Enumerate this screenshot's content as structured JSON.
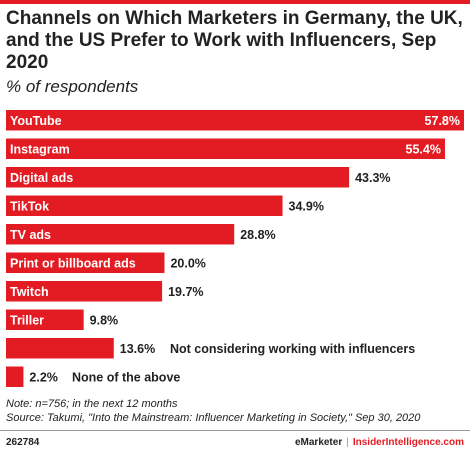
{
  "title": "Channels on Which Marketers in Germany, the UK, and the US Prefer to Work with Influencers, Sep 2020",
  "subtitle": "% of respondents",
  "chart_data": {
    "type": "bar",
    "orientation": "horizontal",
    "categories": [
      "YouTube",
      "Instagram",
      "Digital ads",
      "TikTok",
      "TV ads",
      "Print or billboard ads",
      "Twitch",
      "Triller",
      "Not considering working with influencers",
      "None of the above"
    ],
    "values": [
      57.8,
      55.4,
      43.3,
      34.9,
      28.8,
      20.0,
      19.7,
      9.8,
      13.6,
      2.2
    ],
    "value_labels": [
      "57.8%",
      "55.4%",
      "43.3%",
      "34.9%",
      "28.8%",
      "20.0%",
      "19.7%",
      "9.8%",
      "13.6%",
      "2.2%"
    ],
    "bar_labels": [
      "YouTube",
      "Instagram",
      "Digital ads",
      "TikTok",
      "TV ads",
      "Print or billboard ads",
      "Twitch",
      "Triller",
      "",
      ""
    ],
    "outside_labels": [
      "",
      "",
      "",
      "",
      "",
      "",
      "",
      "",
      "Not considering working with influencers",
      "None of the above"
    ],
    "xlim": [
      0,
      57.8
    ],
    "grid": false,
    "bar_color": "#e31c23"
  },
  "notes": {
    "note": "Note: n=756; in the next 12 months",
    "source": "Source: Takumi, \"Into the Mainstream: Influencer Marketing in Society,\" Sep 30, 2020"
  },
  "footer": {
    "chart_id": "262784",
    "brand_left": "eMarketer",
    "separator": "|",
    "brand_right": "InsiderIntelligence.com"
  }
}
